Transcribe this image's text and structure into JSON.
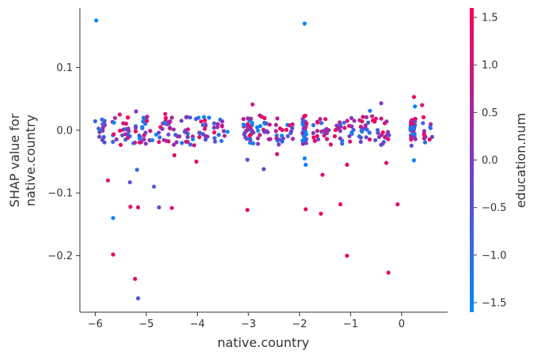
{
  "chart_data": {
    "type": "scatter",
    "title": "",
    "xlabel": "native.country",
    "ylabel_line1": "SHAP value for",
    "ylabel_line2": "native.country",
    "xlim": [
      -6.3,
      0.9
    ],
    "ylim": [
      -0.29,
      0.195
    ],
    "x_ticks": [
      -6,
      -5,
      -4,
      -3,
      -2,
      -1,
      0
    ],
    "x_tick_labels": [
      "−6",
      "−5",
      "−4",
      "−3",
      "−2",
      "−1",
      "0"
    ],
    "y_ticks": [
      0.1,
      0.0,
      -0.1,
      -0.2
    ],
    "y_tick_labels": [
      "0.1",
      "0.0",
      "−0.1",
      "−0.2"
    ],
    "colorbar": {
      "label": "education.num",
      "range": [
        -1.6,
        1.6
      ],
      "ticks": [
        1.5,
        1.0,
        0.5,
        0.0,
        -0.5,
        -1.0,
        -1.5
      ],
      "tick_labels": [
        "1.5",
        "1.0",
        "0.5",
        "0.0",
        "−0.5",
        "−1.0",
        "−1.5"
      ],
      "low_color": "#008bfb",
      "high_color": "#ff0052"
    },
    "grid": false,
    "points": [
      {
        "x": -5.98,
        "y": 0.175,
        "c": -1.5
      },
      {
        "x": -1.9,
        "y": 0.17,
        "c": -1.5
      },
      {
        "x": -5.75,
        "y": -0.08,
        "c": 1.2
      },
      {
        "x": -5.65,
        "y": -0.14,
        "c": -1.4
      },
      {
        "x": -5.65,
        "y": -0.198,
        "c": 1.3
      },
      {
        "x": -5.32,
        "y": -0.083,
        "c": -0.4
      },
      {
        "x": -5.31,
        "y": -0.122,
        "c": 1.2
      },
      {
        "x": -5.22,
        "y": -0.237,
        "c": 1.3
      },
      {
        "x": -5.18,
        "y": -0.063,
        "c": -1.0
      },
      {
        "x": -5.16,
        "y": -0.123,
        "c": 1.1
      },
      {
        "x": -5.16,
        "y": -0.268,
        "c": -0.6
      },
      {
        "x": -4.85,
        "y": -0.09,
        "c": -0.6
      },
      {
        "x": -4.75,
        "y": -0.123,
        "c": -0.3
      },
      {
        "x": -4.5,
        "y": -0.124,
        "c": 1.2
      },
      {
        "x": -3.02,
        "y": -0.127,
        "c": 1.2
      },
      {
        "x": -1.88,
        "y": -0.126,
        "c": 1.3
      },
      {
        "x": -1.58,
        "y": -0.133,
        "c": 1.3
      },
      {
        "x": -1.55,
        "y": -0.071,
        "c": 1.2
      },
      {
        "x": -1.2,
        "y": -0.118,
        "c": 1.2
      },
      {
        "x": -1.07,
        "y": -0.2,
        "c": 1.3
      },
      {
        "x": -1.07,
        "y": -0.055,
        "c": 1.2
      },
      {
        "x": -0.3,
        "y": -0.052,
        "c": 1.1
      },
      {
        "x": -0.26,
        "y": -0.227,
        "c": 1.2
      },
      {
        "x": -0.08,
        "y": -0.118,
        "c": 1.2
      },
      {
        "x": -2.92,
        "y": 0.041,
        "c": 1.0
      },
      {
        "x": -5.52,
        "y": 0.025,
        "c": 1.2
      },
      {
        "x": -5.2,
        "y": 0.03,
        "c": 0.0
      },
      {
        "x": -4.63,
        "y": 0.026,
        "c": 1.1
      },
      {
        "x": -4.5,
        "y": 0.02,
        "c": 0.5
      },
      {
        "x": -3.87,
        "y": 0.021,
        "c": -1.4
      },
      {
        "x": -3.77,
        "y": 0.02,
        "c": -1.3
      },
      {
        "x": -0.62,
        "y": 0.031,
        "c": -1.2
      },
      {
        "x": -0.4,
        "y": 0.043,
        "c": -0.1
      },
      {
        "x": 0.24,
        "y": 0.053,
        "c": 1.3
      },
      {
        "x": 0.26,
        "y": 0.038,
        "c": -1.5
      },
      {
        "x": 0.4,
        "y": 0.04,
        "c": 1.2
      },
      {
        "x": -4.02,
        "y": -0.05,
        "c": 1.2
      },
      {
        "x": -3.02,
        "y": -0.047,
        "c": -0.4
      },
      {
        "x": -2.7,
        "y": -0.062,
        "c": -0.2
      },
      {
        "x": -1.88,
        "y": -0.055,
        "c": -1.4
      },
      {
        "x": -1.9,
        "y": -0.045,
        "c": -1.4
      },
      {
        "x": -4.45,
        "y": -0.04,
        "c": 1.2
      },
      {
        "x": 0.24,
        "y": -0.048,
        "c": -1.5
      },
      {
        "x": -2.44,
        "y": -0.038,
        "c": 0.9
      }
    ],
    "clusters": [
      {
        "cx": -5.9,
        "spread": 0.1,
        "n": 16
      },
      {
        "cx": -5.5,
        "spread": 0.18,
        "n": 24
      },
      {
        "cx": -5.1,
        "spread": 0.18,
        "n": 24
      },
      {
        "cx": -4.7,
        "spread": 0.18,
        "n": 22
      },
      {
        "cx": -4.3,
        "spread": 0.18,
        "n": 20
      },
      {
        "cx": -3.95,
        "spread": 0.15,
        "n": 18
      },
      {
        "cx": -3.55,
        "spread": 0.15,
        "n": 16
      },
      {
        "cx": -3.0,
        "spread": 0.1,
        "n": 30
      },
      {
        "cx": -2.7,
        "spread": 0.15,
        "n": 20
      },
      {
        "cx": -2.3,
        "spread": 0.18,
        "n": 22
      },
      {
        "cx": -1.9,
        "spread": 0.04,
        "n": 30
      },
      {
        "cx": -1.55,
        "spread": 0.18,
        "n": 22
      },
      {
        "cx": -1.15,
        "spread": 0.18,
        "n": 22
      },
      {
        "cx": -0.8,
        "spread": 0.18,
        "n": 20
      },
      {
        "cx": -0.4,
        "spread": 0.18,
        "n": 22
      },
      {
        "cx": 0.22,
        "spread": 0.05,
        "n": 34
      },
      {
        "cx": 0.5,
        "spread": 0.1,
        "n": 14
      }
    ]
  }
}
